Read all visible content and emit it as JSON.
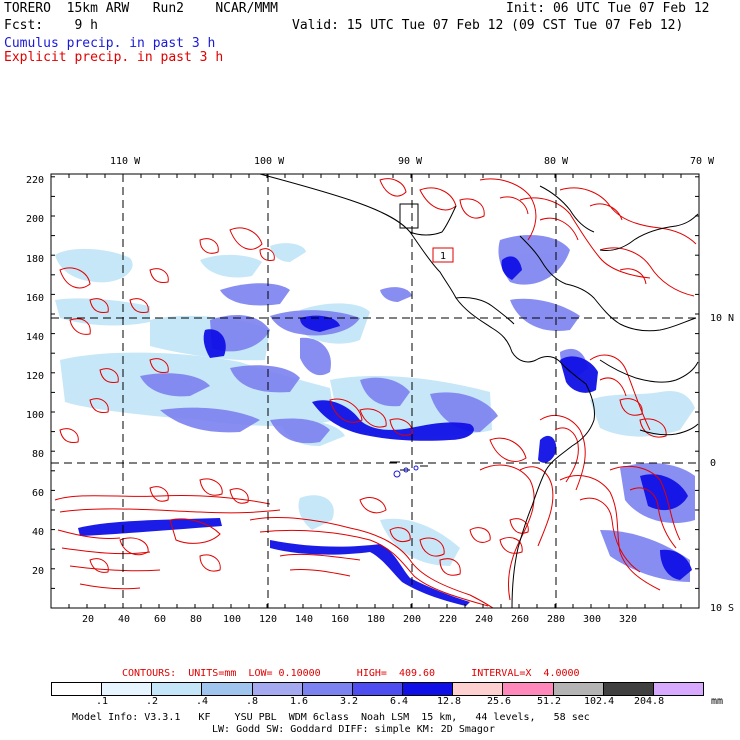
{
  "header": {
    "model": "TORERO  15km ARW   Run2    NCAR/MMM",
    "init": "Init: 06 UTC Tue 07 Feb 12",
    "fcst": "Fcst:    9 h",
    "valid": "Valid: 15 UTC Tue 07 Feb 12 (09 CST Tue 07 Feb 12)",
    "cumulus_label": "Cumulus precip. in past 3 h",
    "explicit_label": "Explicit precip. in past 3 h"
  },
  "map": {
    "top_lon_labels": [
      "110 W",
      "100 W",
      "90 W",
      "80 W",
      "70 W"
    ],
    "right_lat_labels": [
      "10 N",
      "0",
      "10 S"
    ],
    "y_ticks": [
      "220",
      "200",
      "180",
      "160",
      "140",
      "120",
      "100",
      "80",
      "60",
      "40",
      "20"
    ],
    "x_ticks": [
      "20",
      "40",
      "60",
      "80",
      "100",
      "120",
      "140",
      "160",
      "180",
      "200",
      "220",
      "240",
      "260",
      "280",
      "300",
      "320"
    ],
    "high_marker": "1"
  },
  "contours": {
    "line": "CONTOURS:  UNITS=mm  LOW= 0.10000      HIGH=  409.60      INTERVAL=X  4.0000"
  },
  "colorbar": {
    "unit": "mm",
    "labels": [
      ".1",
      ".2",
      ".4",
      ".8",
      "1.6",
      "3.2",
      "6.4",
      "12.8",
      "25.6",
      "51.2",
      "102.4",
      "204.8"
    ],
    "colors": [
      "#ffffff",
      "#e6f5ff",
      "#c4e6f8",
      "#9fc5ee",
      "#a5aaf0",
      "#7c82f0",
      "#4e4ef0",
      "#1010e6",
      "#ffd0d0",
      "#ff88bb",
      "#b4b4b4",
      "#404040",
      "#d8aaff"
    ]
  },
  "footer": {
    "line1": "Model Info: V3.3.1   KF    YSU PBL  WDM 6class  Noah LSM  15 km,   44 levels,   58 sec",
    "line2": "LW: Godd SW: Goddard DIFF: simple KM: 2D Smagor"
  }
}
